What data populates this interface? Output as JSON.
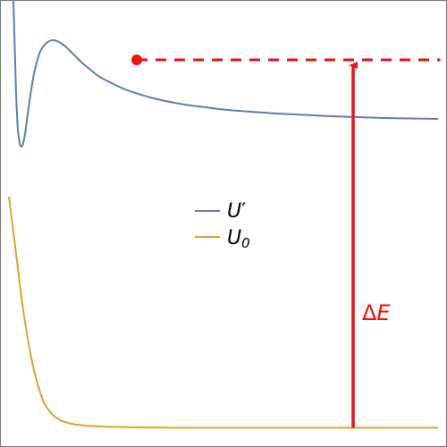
{
  "chart_data": {
    "type": "line",
    "title": "",
    "xlabel": "",
    "ylabel": "",
    "xlim": [
      0,
      1
    ],
    "ylim": [
      0,
      1
    ],
    "grid": false,
    "axis_ticks": false,
    "legend_placement": "center",
    "colors": {
      "u_prime": "#5b7fb5",
      "u_zero": "#e3a02b",
      "annotation": "#ee1111",
      "frame": "#777777"
    },
    "series": [
      {
        "name": "U′",
        "legend_label": "U",
        "legend_sup": "′",
        "color": "#5b7fb5",
        "x": [
          0.03,
          0.032,
          0.034,
          0.036,
          0.038,
          0.04,
          0.044,
          0.048,
          0.052,
          0.056,
          0.06,
          0.064,
          0.07,
          0.076,
          0.082,
          0.09,
          0.1,
          0.11,
          0.12,
          0.13,
          0.14,
          0.15,
          0.16,
          0.17,
          0.18,
          0.19,
          0.2,
          0.22,
          0.24,
          0.26,
          0.28,
          0.3,
          0.34,
          0.38,
          0.42,
          0.46,
          0.5,
          0.56,
          0.62,
          0.68,
          0.74,
          0.8,
          0.86,
          0.92,
          0.98
        ],
        "y": [
          1.0,
          0.93,
          0.86,
          0.79,
          0.745,
          0.71,
          0.68,
          0.672,
          0.68,
          0.7,
          0.73,
          0.76,
          0.8,
          0.835,
          0.86,
          0.885,
          0.9,
          0.908,
          0.91,
          0.907,
          0.901,
          0.893,
          0.883,
          0.873,
          0.863,
          0.854,
          0.846,
          0.83,
          0.819,
          0.809,
          0.8,
          0.793,
          0.781,
          0.772,
          0.765,
          0.76,
          0.755,
          0.75,
          0.746,
          0.743,
          0.74,
          0.738,
          0.736,
          0.735,
          0.734
        ]
      },
      {
        "name": "U0",
        "legend_label": "U",
        "legend_sub": "0",
        "color": "#e3a02b",
        "x": [
          0.02,
          0.03,
          0.04,
          0.05,
          0.06,
          0.07,
          0.08,
          0.09,
          0.1,
          0.12,
          0.14,
          0.16,
          0.18,
          0.2,
          0.25,
          0.3,
          0.4,
          0.5,
          0.6,
          0.7,
          0.8,
          0.9,
          0.98
        ],
        "y": [
          0.56,
          0.48,
          0.4,
          0.32,
          0.255,
          0.2,
          0.156,
          0.122,
          0.096,
          0.07,
          0.058,
          0.052,
          0.049,
          0.047,
          0.045,
          0.044,
          0.043,
          0.043,
          0.043,
          0.043,
          0.043,
          0.043,
          0.043
        ]
      }
    ],
    "annotations": {
      "marker_point": {
        "x": 0.306,
        "y": 0.866
      },
      "dashed_level": {
        "y": 0.866,
        "x_start": 0.306,
        "x_end": 0.985
      },
      "arrow": {
        "x": 0.79,
        "y_from": 0.043,
        "y_to": 0.866
      },
      "label": "ΔE",
      "label_delta": "Δ",
      "label_symbol": "E"
    }
  }
}
